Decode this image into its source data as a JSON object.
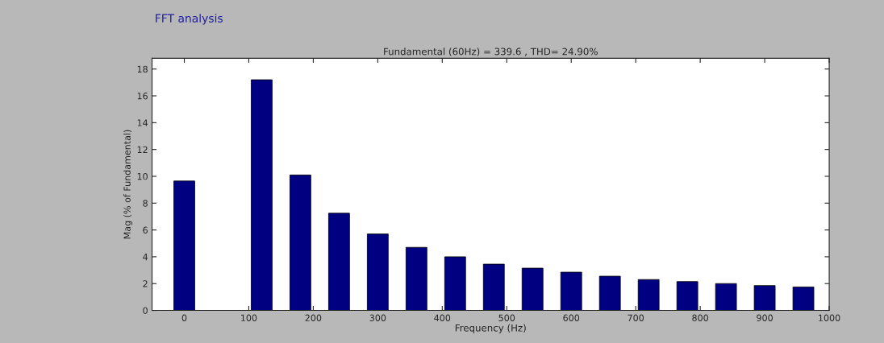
{
  "chart_data": {
    "type": "bar",
    "title": "FFT analysis",
    "subtitle": "Fundamental (60Hz) = 339.6 , THD= 24.90%",
    "xlabel": "Frequency (Hz)",
    "ylabel": "Mag (% of Fundamental)",
    "x": [
      0,
      60,
      120,
      180,
      240,
      300,
      360,
      420,
      480,
      540,
      600,
      660,
      720,
      780,
      840,
      900,
      960
    ],
    "values": [
      9.65,
      null,
      17.2,
      10.1,
      7.25,
      5.7,
      4.7,
      4.0,
      3.45,
      3.15,
      2.85,
      2.55,
      2.3,
      2.15,
      2.0,
      1.85,
      1.75
    ],
    "color": "#000080",
    "xlim": [
      -50,
      1000
    ],
    "xticks": [
      0,
      100,
      200,
      300,
      400,
      500,
      600,
      700,
      800,
      900,
      1000
    ],
    "ylim": [
      0,
      18.8
    ],
    "yticks": [
      0,
      2,
      4,
      6,
      8,
      10,
      12,
      14,
      16,
      18
    ],
    "grid": false
  }
}
